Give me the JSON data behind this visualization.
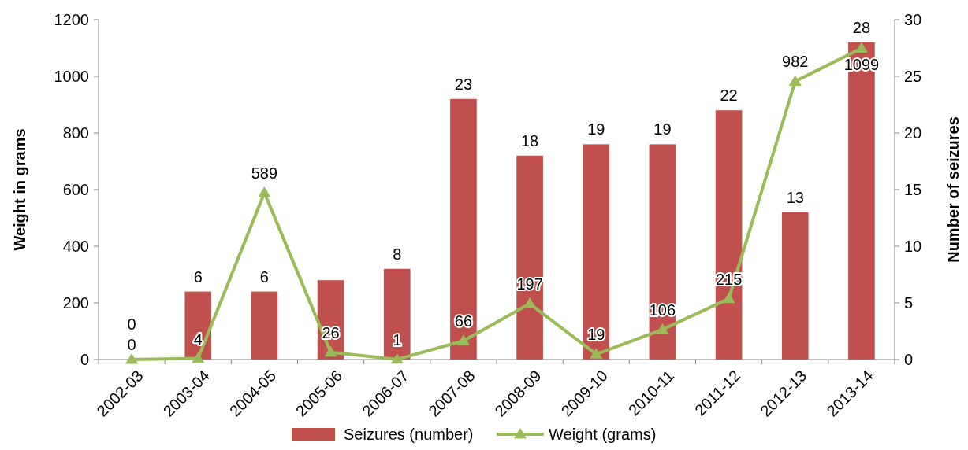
{
  "chart_data": {
    "type": "bar",
    "categories": [
      "2002-03",
      "2003-04",
      "2004-05",
      "2005-06",
      "2006-07",
      "2007-08",
      "2008-09",
      "2009-10",
      "2010-11",
      "2011-12",
      "2012-13",
      "2013-14"
    ],
    "series": [
      {
        "name": "Seizures (number)",
        "axis": "y2",
        "color": "#c0504d",
        "values": [
          0,
          6,
          6,
          7,
          8,
          23,
          18,
          19,
          19,
          22,
          13,
          28
        ],
        "value_labels": [
          "0",
          "6",
          "6",
          null,
          "8",
          "23",
          "18",
          "19",
          "19",
          "22",
          "13",
          "28"
        ]
      },
      {
        "name": "Weight (grams)",
        "type": "line",
        "color": "#9bbb59",
        "marker": "triangle",
        "values": [
          0,
          4,
          589,
          26,
          1,
          66,
          197,
          19,
          106,
          215,
          982,
          1099
        ],
        "value_labels": [
          "0",
          "4",
          "589",
          "26",
          "1",
          "66",
          "197",
          "19",
          "106",
          "215",
          "982",
          "1099"
        ]
      }
    ],
    "ylabel": "Weight in grams",
    "y2label": "Number of seizures",
    "ylim": [
      0,
      1200
    ],
    "yticks": [
      0,
      200,
      400,
      600,
      800,
      1000,
      1200
    ],
    "y2lim": [
      0,
      30
    ],
    "y2ticks": [
      0,
      5,
      10,
      15,
      20,
      25,
      30
    ],
    "legend": "bottom"
  }
}
